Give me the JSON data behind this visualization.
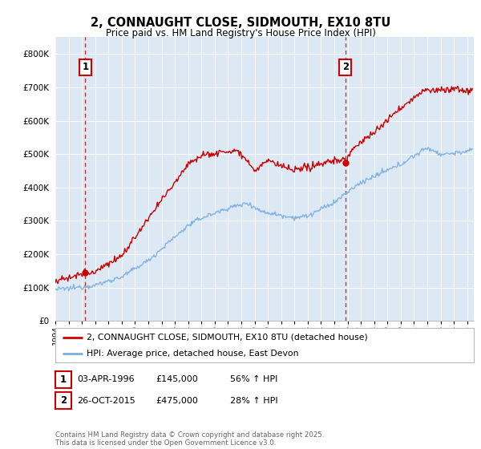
{
  "title": "2, CONNAUGHT CLOSE, SIDMOUTH, EX10 8TU",
  "subtitle": "Price paid vs. HM Land Registry's House Price Index (HPI)",
  "legend_line1": "2, CONNAUGHT CLOSE, SIDMOUTH, EX10 8TU (detached house)",
  "legend_line2": "HPI: Average price, detached house, East Devon",
  "annotation1_date": "03-APR-1996",
  "annotation1_price": "£145,000",
  "annotation1_hpi": "56% ↑ HPI",
  "annotation2_date": "26-OCT-2015",
  "annotation2_price": "£475,000",
  "annotation2_hpi": "28% ↑ HPI",
  "footnote": "Contains HM Land Registry data © Crown copyright and database right 2025.\nThis data is licensed under the Open Government Licence v3.0.",
  "price_color": "#cc0000",
  "hpi_color": "#7aace0",
  "annotation_color": "#cc0000",
  "background_color": "#ffffff",
  "plot_bg_color": "#dce9f5",
  "grid_color": "#ffffff",
  "ylim": [
    0,
    850000
  ],
  "yticks": [
    0,
    100000,
    200000,
    300000,
    400000,
    500000,
    600000,
    700000,
    800000
  ],
  "xlim_start": 1994.0,
  "xlim_end": 2025.5,
  "sale1_x": 1996.25,
  "sale1_y": 145000,
  "sale2_x": 2015.83,
  "sale2_y": 475000
}
